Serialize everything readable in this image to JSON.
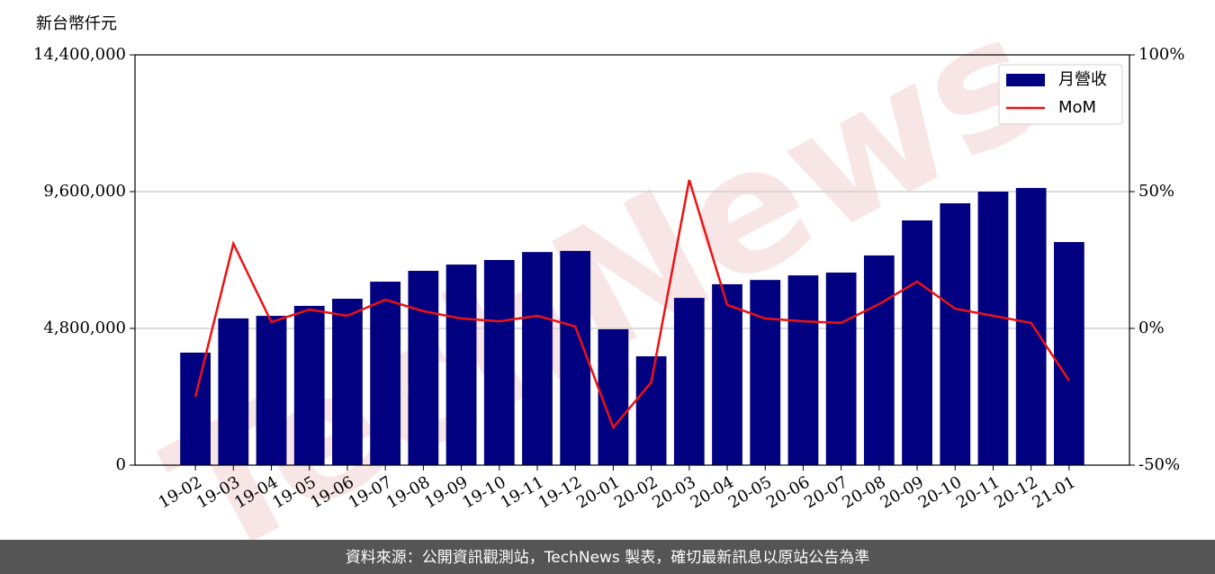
{
  "chart_data": {
    "type": "bar_line",
    "y_label": "新台幣仟元",
    "watermark": "TechNews",
    "categories": [
      "19-02",
      "19-03",
      "19-04",
      "19-05",
      "19-06",
      "19-07",
      "19-08",
      "19-09",
      "19-10",
      "19-11",
      "19-12",
      "20-01",
      "20-02",
      "20-03",
      "20-04",
      "20-05",
      "20-06",
      "20-07",
      "20-08",
      "20-09",
      "20-10",
      "20-11",
      "20-12",
      "21-01"
    ],
    "series": [
      {
        "name": "月營收",
        "type": "bar",
        "axis": "y",
        "color": "#000080",
        "values": [
          3950000,
          5150000,
          5240000,
          5590000,
          5840000,
          6440000,
          6820000,
          7040000,
          7200000,
          7480000,
          7520000,
          4770000,
          3820000,
          5870000,
          6350000,
          6500000,
          6660000,
          6760000,
          7360000,
          8590000,
          9190000,
          9600000,
          9730000,
          7830000
        ]
      },
      {
        "name": "MoM",
        "type": "line",
        "axis": "y2",
        "color": "#ee1111",
        "values": [
          -25,
          31,
          2.3,
          6.9,
          4.6,
          10.5,
          6.3,
          3.6,
          2.6,
          4.6,
          0.7,
          -36.2,
          -19.7,
          54.3,
          8.6,
          3.6,
          2.6,
          2.0,
          8.9,
          17.1,
          7.2,
          4.6,
          2.0,
          -19.1
        ]
      }
    ],
    "ylim": [
      0,
      14400000
    ],
    "yticks": [
      0,
      {
        "value": 4800000,
        "label": "4,800,000"
      },
      {
        "value": 9600000,
        "label": "9,600,000"
      },
      {
        "value": 14400000,
        "label": "14,400,000"
      }
    ],
    "y2lim": [
      -50,
      100
    ],
    "y2ticks": [
      {
        "value": -50,
        "label": "-50%"
      },
      {
        "value": 0,
        "label": "0%"
      },
      {
        "value": 50,
        "label": "50%"
      },
      {
        "value": 100,
        "label": "100%"
      }
    ],
    "grid": true,
    "legend": "upper right"
  },
  "footer": "資料來源：公開資訊觀測站，TechNews 製表，確切最新訊息以原站公告為準"
}
